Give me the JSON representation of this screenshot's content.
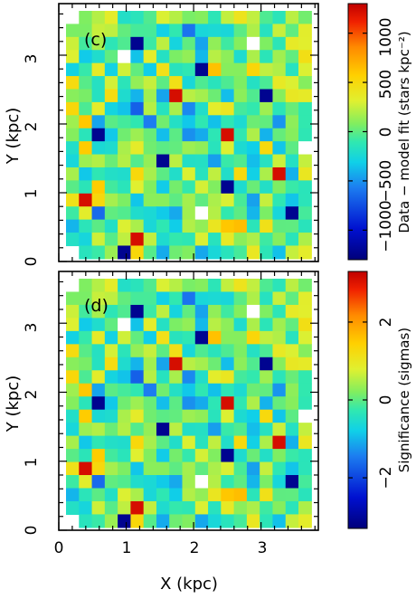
{
  "chart_data": [
    {
      "type": "heatmap",
      "panel_label": "(c)",
      "xlabel": "",
      "ylabel": "Y (kpc)",
      "xlim": [
        0,
        3.85
      ],
      "ylim": [
        0,
        3.75
      ],
      "x_ticks": [],
      "y_ticks": [
        "0",
        "1",
        "2",
        "3"
      ],
      "colorbar": {
        "label": "Data − model fit (stars kpc⁻²)",
        "range": [
          -1300,
          1300
        ],
        "ticks": [
          "−1000",
          "−500",
          "0",
          "500",
          "1000"
        ],
        "tick_values": [
          -1000,
          -500,
          0,
          500,
          1000
        ]
      },
      "colormap": "rainbow (dark blue → cyan → green → yellow → orange → red)",
      "value_description": "noise-like residual map, grid of ~19 x 19 square pixels"
    },
    {
      "type": "heatmap",
      "panel_label": "(d)",
      "xlabel": "X (kpc)",
      "ylabel": "Y (kpc)",
      "xlim": [
        0,
        3.85
      ],
      "ylim": [
        0,
        3.75
      ],
      "x_ticks": [
        "0",
        "1",
        "2",
        "3"
      ],
      "y_ticks": [
        "0",
        "1",
        "2",
        "3"
      ],
      "colorbar": {
        "label": "Significance (sigmas)",
        "range": [
          -3.3,
          3.3
        ],
        "ticks": [
          "−2",
          "0",
          "2"
        ],
        "tick_values": [
          -2,
          0,
          2
        ]
      },
      "colormap": "rainbow (dark blue → cyan → green → yellow → orange → red)",
      "value_description": "noise-like significance map, same pixel grid as (c)"
    }
  ]
}
